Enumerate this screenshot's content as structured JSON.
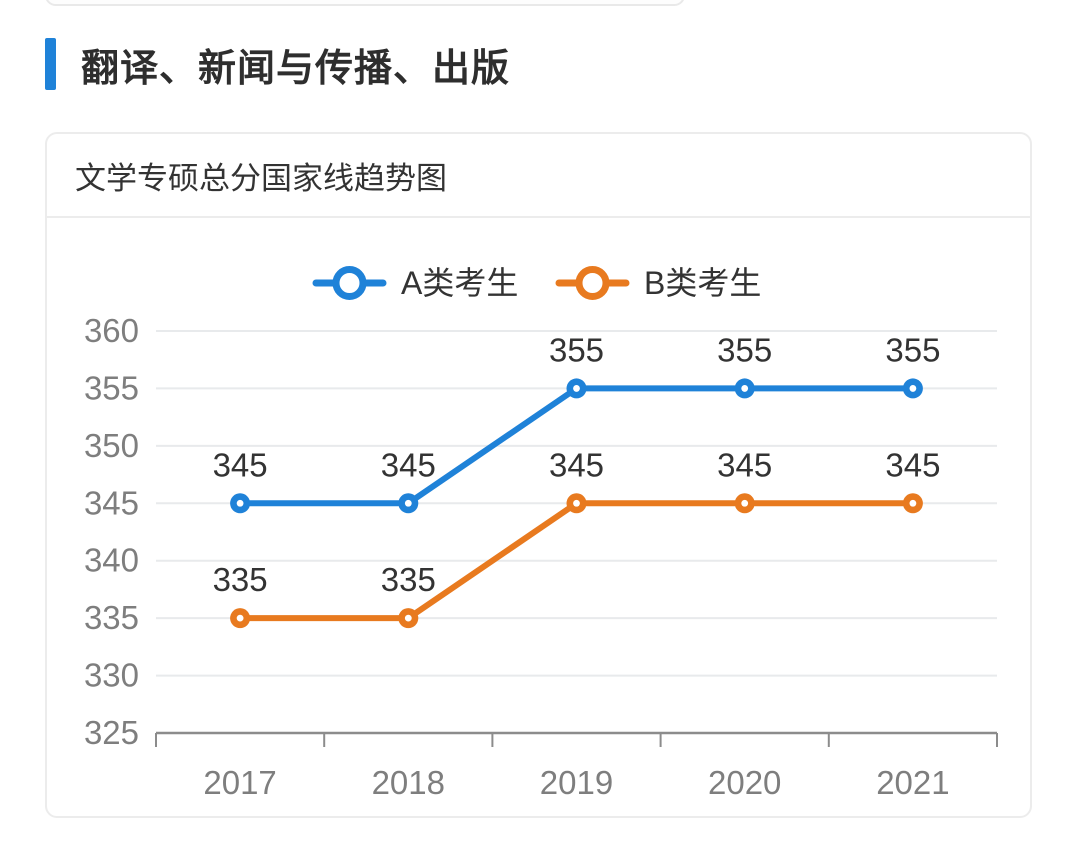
{
  "page": {
    "section_title": "翻译、新闻与传播、出版",
    "accent_color": "#1f82d8",
    "background_color": "#ffffff"
  },
  "card": {
    "title": "文学专硕总分国家线趋势图",
    "border_color": "#ececec"
  },
  "chart_data": {
    "type": "line",
    "title": "文学专硕总分国家线趋势图",
    "categories": [
      "2017",
      "2018",
      "2019",
      "2020",
      "2021"
    ],
    "series": [
      {
        "name": "A类考生",
        "color": "#1f82d8",
        "values": [
          345,
          345,
          355,
          355,
          355
        ]
      },
      {
        "name": "B类考生",
        "color": "#e87a1f",
        "values": [
          335,
          335,
          345,
          345,
          345
        ]
      }
    ],
    "xlabel": "",
    "ylabel": "",
    "ylim": [
      325,
      360
    ],
    "yticks": [
      325,
      330,
      335,
      340,
      345,
      350,
      355,
      360
    ],
    "grid": true,
    "data_labels": true,
    "legend_position": "top-center",
    "marker": "hollow-circle",
    "axis_color": "#8c8c8c",
    "gridline_color": "#e8eaec",
    "tick_label_color": "#7e7e7e",
    "data_label_color": "#333333"
  }
}
